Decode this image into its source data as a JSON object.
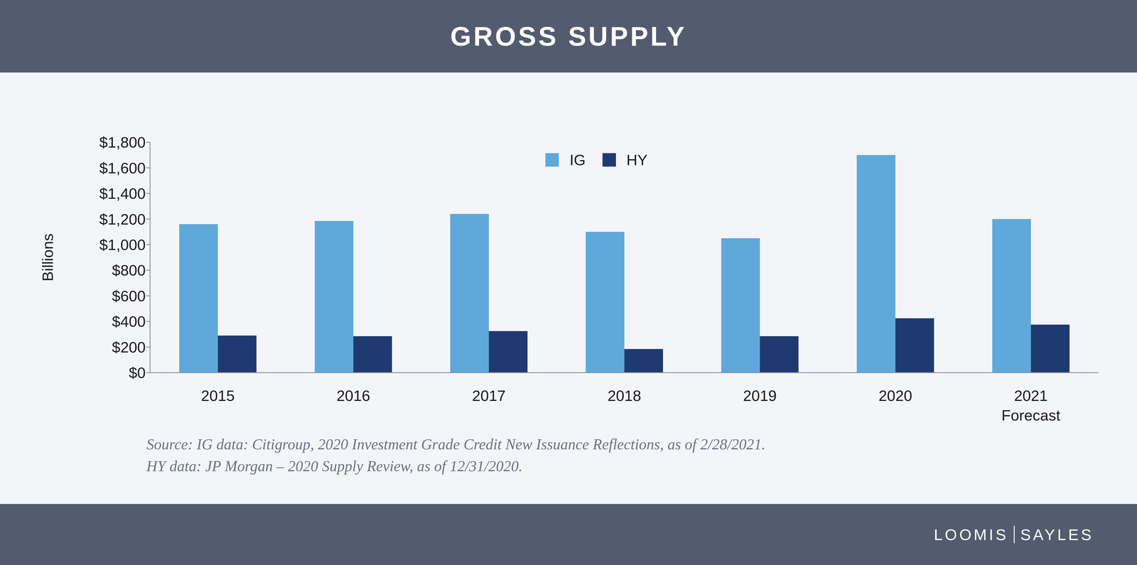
{
  "chart_data": {
    "type": "bar",
    "title": "GROSS SUPPLY",
    "categories": [
      "2015",
      "2016",
      "2017",
      "2018",
      "2019",
      "2020",
      "2021 Forecast"
    ],
    "series": [
      {
        "name": "IG",
        "color": "#5fa8dc",
        "values": [
          1160,
          1185,
          1240,
          1100,
          1050,
          1700,
          1200
        ]
      },
      {
        "name": "HY",
        "color": "#1f3a70",
        "values": [
          290,
          285,
          325,
          185,
          285,
          425,
          375
        ]
      }
    ],
    "y_label": "Billions",
    "ylim": [
      0,
      1800
    ],
    "yticks": [
      {
        "value": 0,
        "label": "$0"
      },
      {
        "value": 200,
        "label": "$200"
      },
      {
        "value": 400,
        "label": "$400"
      },
      {
        "value": 600,
        "label": "$600"
      },
      {
        "value": 800,
        "label": "$800"
      },
      {
        "value": 1000,
        "label": "$1,000"
      },
      {
        "value": 1200,
        "label": "$1,200"
      },
      {
        "value": 1400,
        "label": "$1,400"
      },
      {
        "value": 1600,
        "label": "$1,600"
      },
      {
        "value": 1800,
        "label": "$1,800"
      }
    ],
    "grid": false,
    "legend": "top",
    "source": [
      "Source: IG data: Citigroup, 2020 Investment Grade Credit New Issuance Reflections, as of 2/28/2021.",
      "HY data: JP Morgan – 2020 Supply Review, as of 12/31/2020."
    ],
    "logo_text": [
      "LOOMIS",
      "SAYLES"
    ]
  }
}
